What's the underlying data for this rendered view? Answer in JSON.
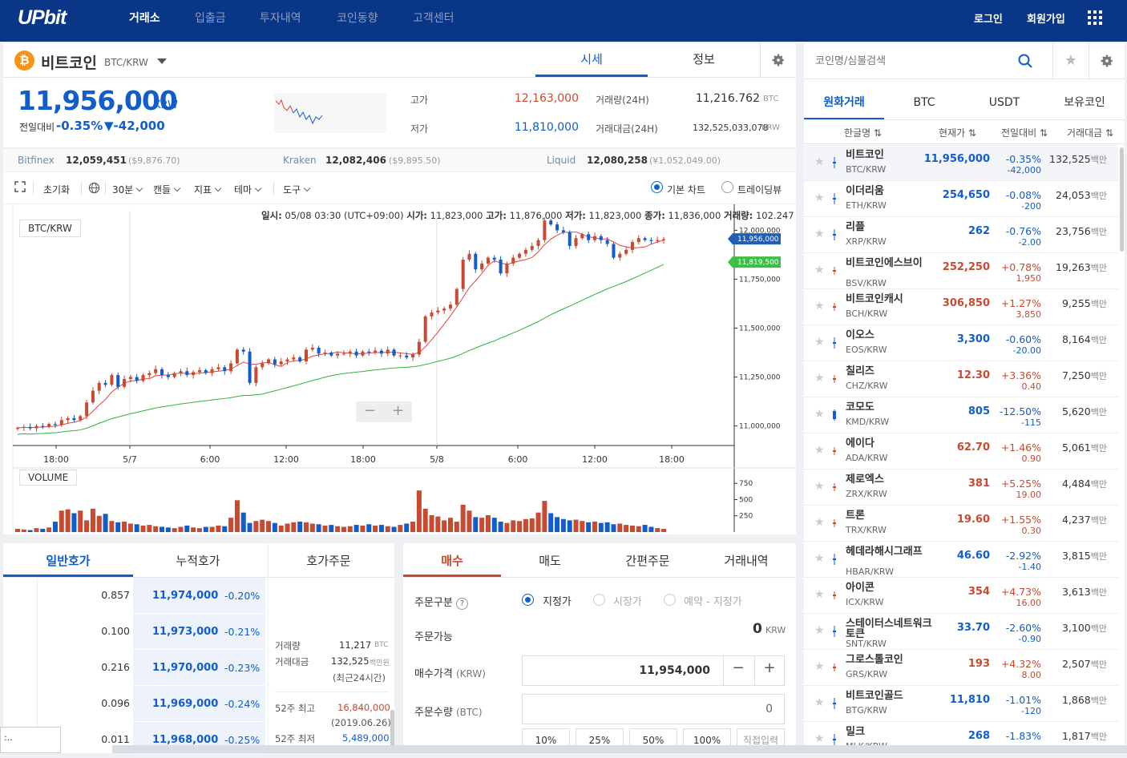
{
  "nav": {
    "logo": "UPbit",
    "menu": [
      "거래소",
      "입출금",
      "투자내역",
      "코인동향",
      "고객센터"
    ],
    "login": "로그인",
    "signup": "회원가입"
  },
  "coin": {
    "name": "비트코인",
    "pair": "BTC/KRW",
    "tab_sise": "시세",
    "tab_info": "정보",
    "price": "11,956,000",
    "unit": "KRW",
    "prev_label": "전일대비",
    "prev_rate": "-0.35%",
    "prev_diff": "▼-42,000"
  },
  "stats": {
    "high_label": "고가",
    "high": "12,163,000",
    "low_label": "저가",
    "low": "11,810,000",
    "vol_label": "거래량(24H)",
    "vol": "11,216.762",
    "vol_unit": "BTC",
    "amt_label": "거래대금(24H)",
    "amt": "132,525,033,078",
    "amt_unit": "KRW"
  },
  "exchanges": [
    {
      "name": "Bitfinex",
      "krw": "12,059,451",
      "usd": "($9,876.70)"
    },
    {
      "name": "Kraken",
      "krw": "12,082,406",
      "usd": "($9,895.50)"
    },
    {
      "name": "Liquid",
      "krw": "12,080,258",
      "usd": "(¥1,052,049.00)"
    }
  ],
  "toolbar": {
    "reset": "초기화",
    "interval": "30분",
    "candle": "캔들",
    "indicator": "지표",
    "theme": "테마",
    "tools": "도구",
    "basic": "기본 차트",
    "tv": "트레이딩뷰"
  },
  "ohlc": {
    "date_label": "일시:",
    "date": "05/08 03:30 (UTC+09:00)",
    "open_label": "시가:",
    "open": "11,823,000",
    "high_label": "고가:",
    "high": "11,876,000",
    "low_label": "저가:",
    "low": "11,823,000",
    "close_label": "종가:",
    "close": "11,836,000",
    "volume_label": "거래량:",
    "volume": "102.247"
  },
  "chart_labels": {
    "pair": "BTC/KRW",
    "volume": "VOLUME",
    "current_tag": "11,956,000",
    "ma_tag": "11,819,500"
  },
  "chart_data": {
    "type": "candlestick",
    "x_ticks": [
      "18:00",
      "5/7",
      "6:00",
      "12:00",
      "18:00",
      "5/8",
      "6:00",
      "12:00",
      "18:00"
    ],
    "y_ticks": [
      "12,000,000",
      "11,750,000",
      "11,500,000",
      "11,250,000",
      "11,000,000"
    ],
    "y_tick_values": [
      12000000,
      11750000,
      11500000,
      11250000,
      11000000
    ],
    "ylim": [
      10900000,
      12100000
    ],
    "vol_ticks": [
      "750",
      "500",
      "250"
    ],
    "vol_tick_values": [
      750,
      500,
      250
    ],
    "vol_max": 950,
    "closes": [
      10990000,
      10995000,
      10988000,
      11000000,
      10998000,
      11010000,
      11005000,
      11030000,
      11040000,
      11030000,
      11050000,
      11120000,
      11180000,
      11220000,
      11210000,
      11260000,
      11200000,
      11240000,
      11250000,
      11230000,
      11260000,
      11270000,
      11290000,
      11260000,
      11250000,
      11270000,
      11280000,
      11260000,
      11275000,
      11285000,
      11270000,
      11290000,
      11300000,
      11280000,
      11320000,
      11390000,
      11380000,
      11220000,
      11300000,
      11320000,
      11340000,
      11315000,
      11330000,
      11340000,
      11350000,
      11330000,
      11390000,
      11400000,
      11370000,
      11375000,
      11360000,
      11370000,
      11370000,
      11380000,
      11360000,
      11380000,
      11375000,
      11385000,
      11370000,
      11390000,
      11360000,
      11360000,
      11350000,
      11365000,
      11430000,
      11560000,
      11580000,
      11590000,
      11600000,
      11620000,
      11700000,
      11850000,
      11880000,
      11800000,
      11830000,
      11860000,
      11850000,
      11780000,
      11830000,
      11860000,
      11880000,
      11900000,
      11920000,
      11950000,
      12050000,
      12030000,
      12000000,
      11990000,
      11920000,
      11960000,
      11980000,
      11950000,
      11970000,
      11950000,
      11930000,
      11860000,
      11880000,
      11900000,
      11940000,
      11960000,
      11950000,
      11945000,
      11950000,
      11955000
    ],
    "volumes": [
      50,
      40,
      30,
      60,
      50,
      70,
      160,
      330,
      350,
      290,
      330,
      180,
      360,
      250,
      280,
      170,
      150,
      160,
      130,
      120,
      100,
      110,
      90,
      80,
      70,
      60,
      80,
      100,
      70,
      60,
      80,
      80,
      100,
      90,
      220,
      490,
      300,
      140,
      170,
      190,
      170,
      140,
      100,
      130,
      150,
      160,
      150,
      130,
      120,
      100,
      110,
      90,
      80,
      90,
      110,
      100,
      120,
      100,
      110,
      90,
      80,
      110,
      130,
      160,
      640,
      360,
      260,
      240,
      180,
      220,
      160,
      420,
      330,
      230,
      220,
      260,
      220,
      160,
      140,
      180,
      170,
      200,
      210,
      300,
      480,
      290,
      230,
      200,
      180,
      190,
      170,
      150,
      160,
      140,
      150,
      120,
      130,
      110,
      100,
      90,
      110,
      80,
      60,
      50
    ]
  },
  "orderbook": {
    "tabs": [
      "일반호가",
      "누적호가",
      "호가주문"
    ],
    "rows": [
      {
        "vol": "0.857",
        "price": "11,974,000",
        "rate": "-0.20%"
      },
      {
        "vol": "0.100",
        "price": "11,973,000",
        "rate": "-0.21%"
      },
      {
        "vol": "0.216",
        "price": "11,970,000",
        "rate": "-0.23%"
      },
      {
        "vol": "0.096",
        "price": "11,969,000",
        "rate": "-0.24%"
      },
      {
        "vol": "0.011",
        "price": "11,968,000",
        "rate": "-0.25%"
      }
    ],
    "side": {
      "vol_label": "거래량",
      "vol": "11,217",
      "vol_unit": "BTC",
      "amt_label": "거래대금",
      "amt": "132,525",
      "amt_unit": "백만원",
      "recent": "(최근24시간)",
      "high52_label": "52주 최고",
      "high52": "16,840,000",
      "high52_date": "(2019.06.26)",
      "low52_label": "52주 최저",
      "low52": "5,489,000"
    }
  },
  "order": {
    "tabs": [
      "매수",
      "매도",
      "간편주문",
      "거래내역"
    ],
    "type_label": "주문구분",
    "types": [
      "지정가",
      "시장가",
      "예약 - 지정가"
    ],
    "avail_label": "주문가능",
    "avail": "0",
    "avail_unit": "KRW",
    "price_label": "매수가격",
    "price_unit": "(KRW)",
    "price": "11,954,000",
    "qty_label": "주문수량",
    "qty_unit": "(BTC)",
    "qty": "0",
    "pcts": [
      "10%",
      "25%",
      "50%",
      "100%",
      "직접입력"
    ]
  },
  "market": {
    "search_placeholder": "코인명/심볼검색",
    "tabs": [
      "원화거래",
      "BTC",
      "USDT",
      "보유코인"
    ],
    "headers": [
      "한글명 ⇅",
      "현재가 ⇅",
      "전일대비 ⇅",
      "거래대금 ⇅"
    ],
    "unit": "백만",
    "rows": [
      {
        "name": "비트코인",
        "ticker": "BTC/KRW",
        "price": "11,956,000",
        "rate": "-0.35%",
        "diff": "-42,000",
        "vol": "132,525",
        "dir": "down"
      },
      {
        "name": "이더리움",
        "ticker": "ETH/KRW",
        "price": "254,650",
        "rate": "-0.08%",
        "diff": "-200",
        "vol": "24,053",
        "dir": "down"
      },
      {
        "name": "리플",
        "ticker": "XRP/KRW",
        "price": "262",
        "rate": "-0.76%",
        "diff": "-2.00",
        "vol": "23,756",
        "dir": "down"
      },
      {
        "name": "비트코인에스브이",
        "ticker": "BSV/KRW",
        "price": "252,250",
        "rate": "+0.78%",
        "diff": "1,950",
        "vol": "19,263",
        "dir": "up"
      },
      {
        "name": "비트코인캐시",
        "ticker": "BCH/KRW",
        "price": "306,850",
        "rate": "+1.27%",
        "diff": "3,850",
        "vol": "9,255",
        "dir": "up"
      },
      {
        "name": "이오스",
        "ticker": "EOS/KRW",
        "price": "3,300",
        "rate": "-0.60%",
        "diff": "-20.00",
        "vol": "8,164",
        "dir": "down"
      },
      {
        "name": "칠리즈",
        "ticker": "CHZ/KRW",
        "price": "12.30",
        "rate": "+3.36%",
        "diff": "0.40",
        "vol": "7,250",
        "dir": "up"
      },
      {
        "name": "코모도",
        "ticker": "KMD/KRW",
        "price": "805",
        "rate": "-12.50%",
        "diff": "-115",
        "vol": "5,620",
        "dir": "down"
      },
      {
        "name": "에이다",
        "ticker": "ADA/KRW",
        "price": "62.70",
        "rate": "+1.46%",
        "diff": "0.90",
        "vol": "5,061",
        "dir": "up"
      },
      {
        "name": "제로엑스",
        "ticker": "ZRX/KRW",
        "price": "381",
        "rate": "+5.25%",
        "diff": "19.00",
        "vol": "4,484",
        "dir": "up"
      },
      {
        "name": "트론",
        "ticker": "TRX/KRW",
        "price": "19.60",
        "rate": "+1.55%",
        "diff": "0.30",
        "vol": "4,237",
        "dir": "up"
      },
      {
        "name": "헤데라해시그래프",
        "ticker": "HBAR/KRW",
        "price": "46.60",
        "rate": "-2.92%",
        "diff": "-1.40",
        "vol": "3,815",
        "dir": "down"
      },
      {
        "name": "아이콘",
        "ticker": "ICX/KRW",
        "price": "354",
        "rate": "+4.73%",
        "diff": "16.00",
        "vol": "3,613",
        "dir": "up"
      },
      {
        "name": "스테이터스네트워크토큰",
        "ticker": "SNT/KRW",
        "price": "33.70",
        "rate": "-2.60%",
        "diff": "-0.90",
        "vol": "3,100",
        "dir": "down"
      },
      {
        "name": "그로스톨코인",
        "ticker": "GRS/KRW",
        "price": "193",
        "rate": "+4.32%",
        "diff": "8.00",
        "vol": "2,507",
        "dir": "up"
      },
      {
        "name": "비트코인골드",
        "ticker": "BTG/KRW",
        "price": "11,810",
        "rate": "-1.01%",
        "diff": "-120",
        "vol": "1,868",
        "dir": "down"
      },
      {
        "name": "밀크",
        "ticker": "MLK/KRW",
        "price": "268",
        "rate": "-1.83%",
        "diff": "",
        "vol": "1,817",
        "dir": "down"
      }
    ]
  },
  "colors": {
    "brand": "#093687",
    "up": "#c84a31",
    "down": "#115dcb",
    "ma_short": "#e8413a",
    "ma_long": "#2fb33b"
  }
}
